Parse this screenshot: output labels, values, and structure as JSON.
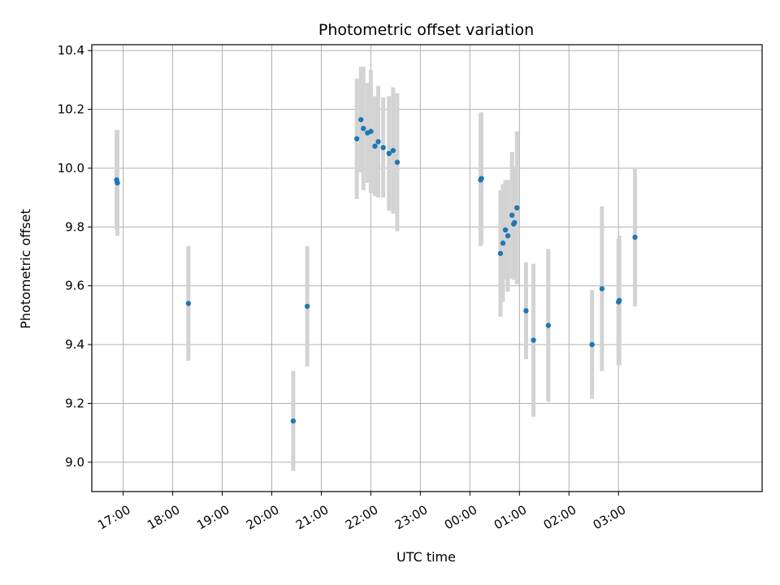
{
  "chart_data": {
    "type": "scatter",
    "title": "Photometric offset variation",
    "xlabel": "UTC time",
    "ylabel": "Photometric offset",
    "x_tick_labels": [
      "17:00",
      "18:00",
      "19:00",
      "20:00",
      "21:00",
      "22:00",
      "23:00",
      "00:00",
      "01:00",
      "02:00",
      "03:00"
    ],
    "y_tick_labels": [
      "9.0",
      "9.2",
      "9.4",
      "9.6",
      "9.8",
      "10.0",
      "10.2",
      "10.4"
    ],
    "y_ticks": [
      9.0,
      9.2,
      9.4,
      9.6,
      9.8,
      10.0,
      10.2,
      10.4
    ],
    "xlim": [
      "16:22",
      "05:54"
    ],
    "ylim": [
      8.9,
      10.42
    ],
    "grid": true,
    "marker_color": "#1f77b4",
    "errorbar_color": "#d3d3d3",
    "points": [
      {
        "t": "16:52",
        "y": 9.96,
        "err": 0.17
      },
      {
        "t": "16:53",
        "y": 9.95,
        "err": 0.18
      },
      {
        "t": "18:19",
        "y": 9.54,
        "err": 0.195
      },
      {
        "t": "20:26",
        "y": 9.14,
        "err": 0.17
      },
      {
        "t": "20:43",
        "y": 9.53,
        "err": 0.205
      },
      {
        "t": "21:43",
        "y": 10.1,
        "err": 0.205
      },
      {
        "t": "21:48",
        "y": 10.165,
        "err": 0.18
      },
      {
        "t": "21:51",
        "y": 10.135,
        "err": 0.21
      },
      {
        "t": "21:56",
        "y": 10.12,
        "err": 0.17
      },
      {
        "t": "22:00",
        "y": 10.125,
        "err": 0.21
      },
      {
        "t": "22:05",
        "y": 10.075,
        "err": 0.17
      },
      {
        "t": "22:09",
        "y": 10.09,
        "err": 0.19
      },
      {
        "t": "22:15",
        "y": 10.07,
        "err": 0.17
      },
      {
        "t": "22:22",
        "y": 10.05,
        "err": 0.195
      },
      {
        "t": "22:27",
        "y": 10.06,
        "err": 0.215
      },
      {
        "t": "22:32",
        "y": 10.02,
        "err": 0.235
      },
      {
        "t": "00:13",
        "y": 9.96,
        "err": 0.225
      },
      {
        "t": "00:14",
        "y": 9.965,
        "err": 0.225
      },
      {
        "t": "00:37",
        "y": 9.71,
        "err": 0.215
      },
      {
        "t": "00:40",
        "y": 9.745,
        "err": 0.2
      },
      {
        "t": "00:43",
        "y": 9.79,
        "err": 0.17
      },
      {
        "t": "00:46",
        "y": 9.77,
        "err": 0.19
      },
      {
        "t": "00:51",
        "y": 9.84,
        "err": 0.215
      },
      {
        "t": "00:53",
        "y": 9.81,
        "err": 0.19
      },
      {
        "t": "00:54",
        "y": 9.815,
        "err": 0.19
      },
      {
        "t": "00:57",
        "y": 9.865,
        "err": 0.26
      },
      {
        "t": "01:08",
        "y": 9.515,
        "err": 0.165
      },
      {
        "t": "01:17",
        "y": 9.415,
        "err": 0.26
      },
      {
        "t": "01:35",
        "y": 9.465,
        "err": 0.26
      },
      {
        "t": "02:28",
        "y": 9.4,
        "err": 0.185
      },
      {
        "t": "02:40",
        "y": 9.59,
        "err": 0.28
      },
      {
        "t": "03:00",
        "y": 9.545,
        "err": 0.215
      },
      {
        "t": "03:01",
        "y": 9.55,
        "err": 0.22
      },
      {
        "t": "03:20",
        "y": 9.765,
        "err": 0.235
      }
    ]
  }
}
